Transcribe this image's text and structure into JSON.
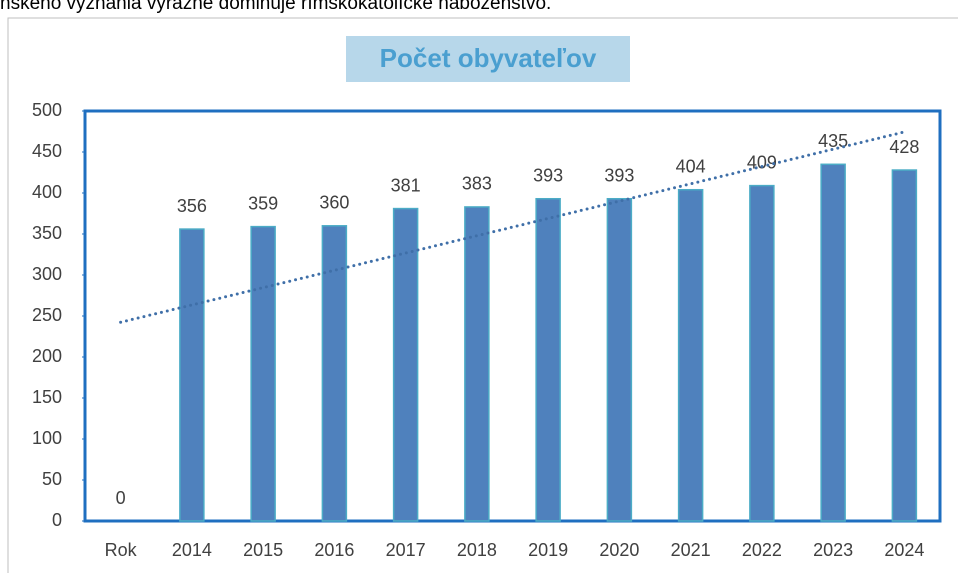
{
  "doc_text": "nského vyznania výrazne dominuje rímskokatolícke náboženstvo.",
  "chart_data": {
    "type": "bar",
    "title": "Počet obyvateľov",
    "categories": [
      "Rok",
      "2014",
      "2015",
      "2016",
      "2017",
      "2018",
      "2019",
      "2020",
      "2021",
      "2022",
      "2023",
      "2024"
    ],
    "values": [
      0,
      356,
      359,
      360,
      381,
      383,
      393,
      393,
      404,
      409,
      435,
      428
    ],
    "color": "#4f81bd",
    "trendline": "linear",
    "trendline_color": "#3f6fa8",
    "ylim": [
      0,
      500
    ],
    "yticks": [
      0,
      50,
      100,
      150,
      200,
      250,
      300,
      350,
      400,
      450,
      500
    ],
    "grid": false
  }
}
